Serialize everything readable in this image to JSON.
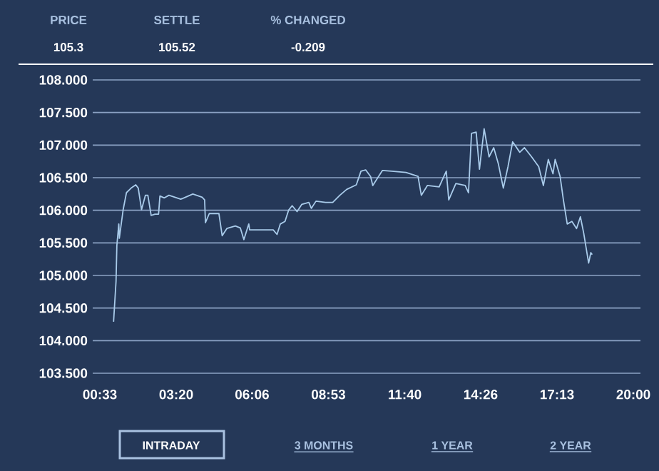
{
  "chart_data": {
    "type": "line",
    "color": "#a9cbea",
    "x": [
      1.05,
      1.14,
      1.17,
      1.24,
      1.26,
      1.4,
      1.52,
      1.69,
      1.86,
      1.95,
      2.07,
      2.21,
      2.3,
      2.42,
      2.56,
      2.69,
      2.74,
      2.9,
      3.07,
      3.5,
      3.94,
      4.28,
      4.37,
      4.4,
      4.54,
      4.89,
      5.01,
      5.18,
      5.49,
      5.67,
      5.8,
      5.98,
      6.01,
      6.87,
      7.01,
      7.13,
      7.3,
      7.43,
      7.56,
      7.74,
      7.91,
      8.17,
      8.26,
      8.43,
      8.78,
      9.04,
      9.3,
      9.55,
      9.9,
      10.07,
      10.24,
      10.42,
      10.5,
      10.85,
      11.19,
      11.71,
      12.15,
      12.27,
      12.49,
      12.92,
      13.18,
      13.27,
      13.53,
      13.87,
      13.99,
      14.1,
      14.27,
      14.39,
      14.56,
      14.74,
      14.91,
      15.08,
      15.26,
      15.43,
      15.6,
      15.86,
      16.03,
      16.29,
      16.55,
      16.72,
      16.9,
      17.07,
      17.15,
      17.33,
      17.45,
      17.59,
      17.76,
      17.93,
      18.07,
      18.19,
      18.37,
      18.45,
      18.5
    ],
    "values": [
      104.29,
      104.91,
      105.46,
      105.79,
      105.57,
      106.01,
      106.27,
      106.34,
      106.39,
      106.34,
      106.01,
      106.23,
      106.23,
      105.92,
      105.94,
      105.94,
      106.22,
      106.19,
      106.23,
      106.17,
      106.25,
      106.2,
      106.16,
      105.81,
      105.95,
      105.95,
      105.61,
      105.72,
      105.76,
      105.73,
      105.55,
      105.79,
      105.7,
      105.7,
      105.63,
      105.79,
      105.83,
      106.0,
      106.07,
      105.98,
      106.09,
      106.12,
      106.03,
      106.14,
      106.12,
      106.12,
      106.23,
      106.32,
      106.39,
      106.6,
      106.62,
      106.52,
      106.38,
      106.61,
      106.6,
      106.58,
      106.52,
      106.23,
      106.38,
      106.36,
      106.6,
      106.16,
      106.41,
      106.38,
      106.27,
      107.18,
      107.2,
      106.63,
      107.25,
      106.82,
      106.96,
      106.71,
      106.34,
      106.67,
      107.05,
      106.89,
      106.96,
      106.82,
      106.67,
      106.38,
      106.78,
      106.56,
      106.78,
      106.52,
      106.16,
      105.79,
      105.83,
      105.72,
      105.9,
      105.65,
      105.19,
      105.35,
      105.32
    ],
    "xlim": [
      0.55,
      20.0
    ],
    "xticks": [
      {
        "value": 0.55,
        "label": "00:33"
      },
      {
        "value": 3.333,
        "label": "03:20"
      },
      {
        "value": 6.1,
        "label": "06:06"
      },
      {
        "value": 8.883,
        "label": "08:53"
      },
      {
        "value": 11.667,
        "label": "11:40"
      },
      {
        "value": 14.433,
        "label": "14:26"
      },
      {
        "value": 17.217,
        "label": "17:13"
      },
      {
        "value": 20.0,
        "label": "20:00"
      }
    ],
    "ylim": [
      103.5,
      108.0
    ],
    "yticks": [
      {
        "value": 103.5,
        "label": "103.500"
      },
      {
        "value": 104.0,
        "label": "104.000"
      },
      {
        "value": 104.5,
        "label": "104.500"
      },
      {
        "value": 105.0,
        "label": "105.000"
      },
      {
        "value": 105.5,
        "label": "105.500"
      },
      {
        "value": 106.0,
        "label": "106.000"
      },
      {
        "value": 106.5,
        "label": "106.500"
      },
      {
        "value": 107.0,
        "label": "107.000"
      },
      {
        "value": 107.5,
        "label": "107.500"
      },
      {
        "value": 108.0,
        "label": "108.000"
      }
    ],
    "grid": "y",
    "annotations": [
      "PRICE",
      "105.3",
      "SETTLE",
      "105.52",
      "% CHANGED",
      "-0.209",
      "INTRADAY",
      "3 MONTHS",
      "1 YEAR",
      "2 YEAR"
    ]
  }
}
